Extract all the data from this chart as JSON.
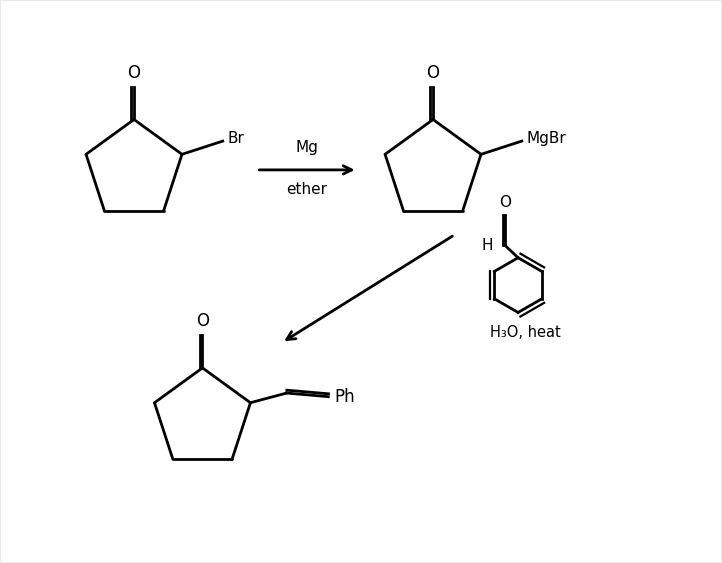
{
  "background_color": "#e8e8e8",
  "inner_bg": "#ffffff",
  "line_color": "#000000",
  "line_width": 2.0,
  "text_color": "#000000",
  "fig_width": 7.22,
  "fig_height": 5.63,
  "step1_reagent": "Mg",
  "step1_solvent": "ether",
  "step2_conditions": "H₃O, heat",
  "product_label": "Ph",
  "mgbr_label": "MgBr",
  "br_label": "Br",
  "oxygen_label": "O"
}
